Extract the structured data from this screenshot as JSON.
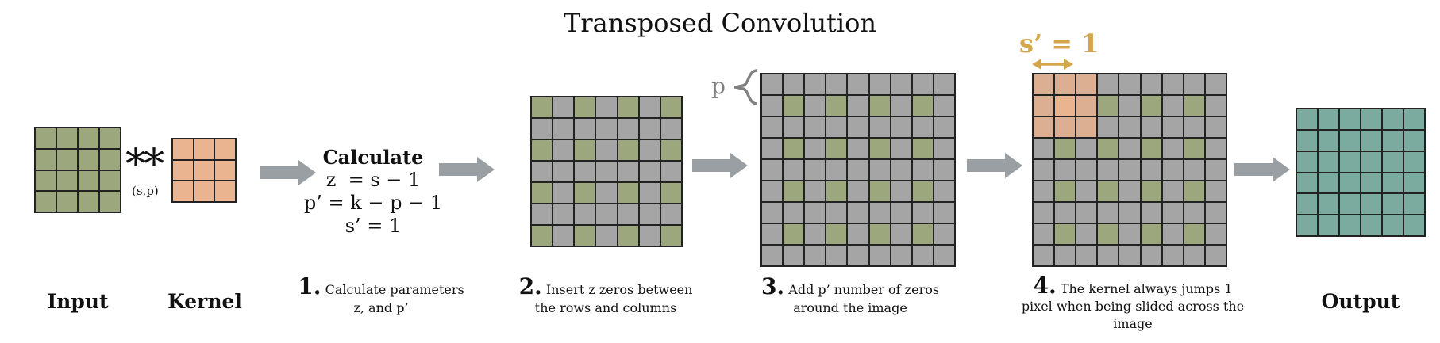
{
  "title": "Transposed Convolution",
  "operator": {
    "symbol": "**",
    "params": "(s,p)"
  },
  "labels": {
    "input": "Input",
    "kernel": "Kernel",
    "output": "Output"
  },
  "calc": {
    "heading": "Calculate",
    "line1": "z  = s − 1",
    "line2": "p’ = k − p − 1",
    "line3": "s’ = 1"
  },
  "steps": [
    {
      "num": "1.",
      "text1": "Calculate parameters",
      "text2": "z, and p’"
    },
    {
      "num": "2.",
      "text1": "Insert z zeros between",
      "text2": "the rows and columns"
    },
    {
      "num": "3.",
      "text1": "Add p’ number of zeros",
      "text2": "around the image"
    },
    {
      "num": "4.",
      "text1": "The kernel always jumps 1",
      "text2": "pixel when being slided across the",
      "text3": "image"
    }
  ],
  "annotations": {
    "p_label": "p",
    "stride_label": "s’ = 1"
  },
  "colors": {
    "input": "#9ca77e",
    "kernel": "#ebb491",
    "zero": "#a5a5a5",
    "output": "#7baa9e",
    "arrow": "#9a9fa3",
    "stride": "#d4a64c",
    "overlay": "#dcae92"
  }
}
